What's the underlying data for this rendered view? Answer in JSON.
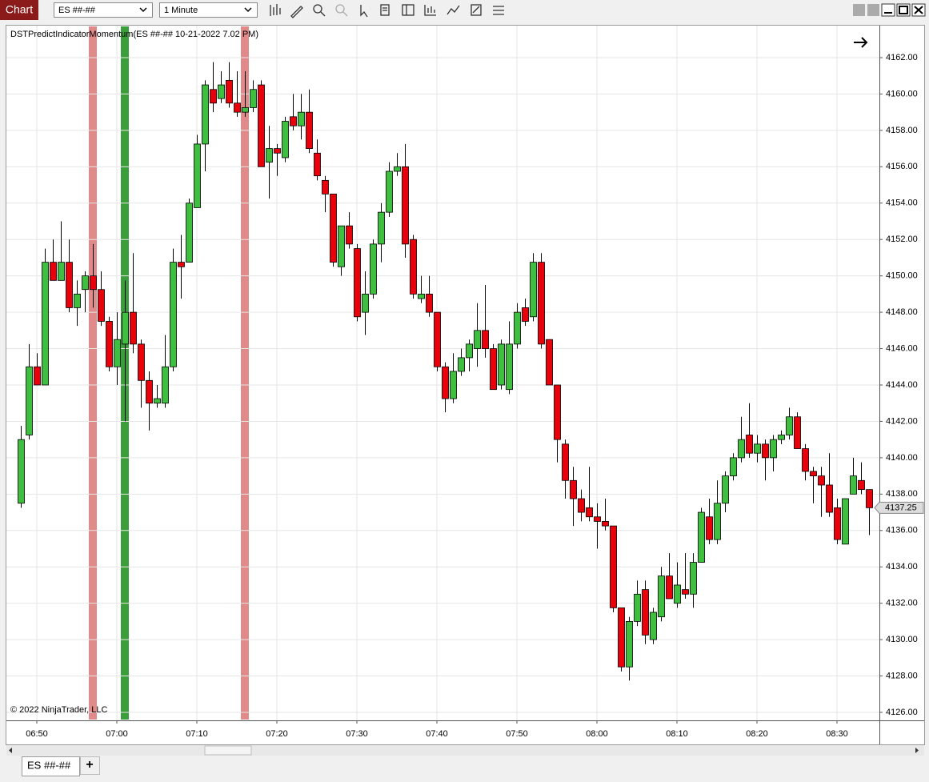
{
  "toolbar": {
    "title": "Chart",
    "instrument": "ES ##-##",
    "interval": "1 Minute"
  },
  "tabs": [
    "ES ##-##"
  ],
  "add_tab": "+",
  "chart_data": {
    "type": "candlestick",
    "title": "DSTPredictIndicatorMomentum(ES ##-## 10-21-2022 7.02 PM)",
    "copyright": "© 2022 NinjaTrader, LLC",
    "x": [
      "06:48",
      "06:49",
      "06:50",
      "06:51",
      "06:52",
      "06:53",
      "06:54",
      "06:55",
      "06:56",
      "06:57",
      "06:58",
      "06:59",
      "07:00",
      "07:01",
      "07:02",
      "07:03",
      "07:04",
      "07:05",
      "07:06",
      "07:07",
      "07:08",
      "07:09",
      "07:10",
      "07:11",
      "07:12",
      "07:13",
      "07:14",
      "07:15",
      "07:16",
      "07:17",
      "07:18",
      "07:19",
      "07:20",
      "07:21",
      "07:22",
      "07:23",
      "07:24",
      "07:25",
      "07:26",
      "07:27",
      "07:28",
      "07:29",
      "07:30",
      "07:31",
      "07:32",
      "07:33",
      "07:34",
      "07:35",
      "07:36",
      "07:37",
      "07:38",
      "07:39",
      "07:40",
      "07:41",
      "07:42",
      "07:43",
      "07:44",
      "07:45",
      "07:46",
      "07:47",
      "07:48",
      "07:49",
      "07:50",
      "07:51",
      "07:52",
      "07:53",
      "07:54",
      "07:55",
      "07:56",
      "07:57",
      "07:58",
      "07:59",
      "08:00",
      "08:01",
      "08:02",
      "08:03",
      "08:04",
      "08:05",
      "08:06",
      "08:07",
      "08:08",
      "08:09",
      "08:10",
      "08:11",
      "08:12",
      "08:13",
      "08:14",
      "08:15",
      "08:16",
      "08:17",
      "08:18",
      "08:19",
      "08:20",
      "08:21",
      "08:22",
      "08:23",
      "08:24",
      "08:25",
      "08:26",
      "08:27",
      "08:28",
      "08:29",
      "08:30",
      "08:31",
      "08:32",
      "08:33",
      "08:34"
    ],
    "open": [
      4137.5,
      4141.25,
      4145,
      4144,
      4150.75,
      4149.75,
      4150.75,
      4148.25,
      4149.25,
      4150,
      4149.25,
      4147.5,
      4145,
      4146.25,
      4148,
      4146.25,
      4144.25,
      4143,
      4143,
      4145,
      4150.75,
      4150.75,
      4153.75,
      4157.25,
      4160.25,
      4159.75,
      4160.75,
      4159.5,
      4159,
      4159.25,
      4160.5,
      4156.25,
      4157,
      4156.5,
      4158.75,
      4158.25,
      4159,
      4156.75,
      4155.25,
      4154.5,
      4150.5,
      4152.75,
      4151.5,
      4148,
      4149,
      4151.75,
      4153.5,
      4155.75,
      4156,
      4152,
      4148.75,
      4149,
      4148,
      4145,
      4143.25,
      4144.75,
      4145.5,
      4146,
      4147,
      4146,
      4144,
      4143.75,
      4146.25,
      4148.25,
      4147.75,
      4150.75,
      4146.5,
      4144,
      4140.75,
      4138.75,
      4137.75,
      4137.25,
      4136.75,
      4136.5,
      4136.25,
      4131.75,
      4128.5,
      4131,
      4132.75,
      4130,
      4131.25,
      4133.5,
      4132,
      4132.75,
      4132.5,
      4134.25,
      4136.75,
      4135.5,
      4137.5,
      4139,
      4140,
      4141.25,
      4140.25,
      4140.75,
      4140,
      4141,
      4141.25,
      4142.25,
      4140.5,
      4139.25,
      4139,
      4138.5,
      4137.25,
      4135.25,
      4138,
      4138.75,
      4138.25
    ],
    "high": [
      4141.75,
      4146.25,
      4145.75,
      4151.5,
      4152,
      4153,
      4152,
      4149.75,
      4150.25,
      4151.75,
      4150.25,
      4147.75,
      4148,
      4149.75,
      4151.25,
      4146.5,
      4144.75,
      4144,
      4146.75,
      4151.5,
      4152.25,
      4154.25,
      4157.75,
      4160.75,
      4161.75,
      4161.25,
      4161.75,
      4161.25,
      4161.25,
      4160.75,
      4160.75,
      4158.25,
      4157.25,
      4158.75,
      4160,
      4160,
      4160.25,
      4157.5,
      4155.5,
      4154.5,
      4152.75,
      4153.5,
      4151.75,
      4150.25,
      4152,
      4154,
      4156.25,
      4156.75,
      4157.25,
      4152.25,
      4150,
      4150,
      4148,
      4145.25,
      4145.75,
      4146,
      4146.5,
      4148.5,
      4149.5,
      4146.25,
      4146.5,
      4147.5,
      4148.5,
      4148.75,
      4151.25,
      4151.25,
      4146.5,
      4144,
      4141,
      4139.5,
      4138.25,
      4139.5,
      4137.5,
      4137.75,
      4136.25,
      4131.75,
      4131.25,
      4133.25,
      4133.25,
      4131.75,
      4134,
      4134.75,
      4134.25,
      4134.75,
      4134.75,
      4137.25,
      4137.75,
      4138.75,
      4139.25,
      4140.25,
      4142.25,
      4143,
      4141.25,
      4141,
      4141.25,
      4141.5,
      4142.75,
      4142.5,
      4140.75,
      4139.5,
      4139.5,
      4140.25,
      4137.75,
      4137.75,
      4140,
      4139.75,
      4138.25
    ],
    "low": [
      4137.25,
      4141,
      4144,
      4144,
      4149.75,
      4149.75,
      4148,
      4147.25,
      4148,
      4148.25,
      4147.25,
      4144.75,
      4144,
      4142,
      4145.75,
      4142.75,
      4141.5,
      4142.75,
      4142.75,
      4144.75,
      4148.75,
      4150.75,
      4153.75,
      4155.75,
      4159,
      4159.5,
      4159.25,
      4158.75,
      4158.75,
      4159,
      4156,
      4154.25,
      4155.5,
      4156.25,
      4158,
      4157.5,
      4156.75,
      4155.25,
      4153.5,
      4150.5,
      4150,
      4151.5,
      4147.5,
      4146.75,
      4148.75,
      4150.75,
      4153.25,
      4155.5,
      4151,
      4148.75,
      4148.5,
      4147.75,
      4144.75,
      4142.5,
      4143,
      4144.5,
      4144.75,
      4145,
      4145.5,
      4143.75,
      4143.75,
      4143.5,
      4146,
      4147.25,
      4147.5,
      4146,
      4144,
      4139.75,
      4137.75,
      4136.25,
      4136.5,
      4136.5,
      4135,
      4136,
      4131.5,
      4128.25,
      4127.75,
      4130.75,
      4129.75,
      4129.75,
      4131,
      4132.25,
      4131.75,
      4132.25,
      4131.75,
      4134.25,
      4135.25,
      4135.25,
      4137,
      4138.75,
      4139.75,
      4140,
      4139.75,
      4138.75,
      4139.25,
      4140.75,
      4141,
      4140.5,
      4138.75,
      4137.5,
      4136.75,
      4136.75,
      4135.25,
      4135.25,
      4138,
      4138,
      4135.75
    ],
    "close": [
      4141,
      4145,
      4144,
      4150.75,
      4149.75,
      4150.75,
      4148.25,
      4149,
      4150,
      4149.25,
      4147.5,
      4145,
      4146.5,
      4148,
      4146.25,
      4144.25,
      4143,
      4143.25,
      4145,
      4150.75,
      4150.5,
      4154,
      4157.25,
      4160.5,
      4159.5,
      4160.5,
      4159.5,
      4159,
      4159.25,
      4160.25,
      4156,
      4157,
      4156.75,
      4158.5,
      4158.25,
      4159,
      4157,
      4155.5,
      4154.5,
      4150.75,
      4152.75,
      4151.75,
      4147.75,
      4149,
      4151.75,
      4153.5,
      4155.75,
      4156,
      4151.75,
      4149,
      4149,
      4148,
      4145,
      4143.25,
      4144.75,
      4145.5,
      4146.25,
      4147,
      4146,
      4143.75,
      4146.25,
      4146.25,
      4148,
      4147.5,
      4150.75,
      4146.25,
      4144,
      4141,
      4138.75,
      4137.75,
      4137,
      4136.75,
      4136.5,
      4136.25,
      4131.75,
      4128.5,
      4131,
      4132.5,
      4130.25,
      4131.5,
      4133.5,
      4132.25,
      4133,
      4132.5,
      4134.25,
      4137,
      4135.5,
      4137.5,
      4139,
      4140,
      4141,
      4140.25,
      4140.75,
      4140,
      4141,
      4141.25,
      4142.25,
      4140.5,
      4139.25,
      4139,
      4138.5,
      4137,
      4135.5,
      4137.75,
      4139,
      4138.25,
      4137.25
    ],
    "up_color": "#3fbf3f",
    "down_color": "#e8000b",
    "highlights": [
      {
        "x": "06:57",
        "color": "#e08a8a"
      },
      {
        "x": "07:01",
        "color": "#3a9e3a"
      },
      {
        "x": "07:16",
        "color": "#e08a8a"
      }
    ],
    "last_price": 4137.25,
    "ylim": [
      4125.56,
      4163.76
    ],
    "yticks": [
      {
        "value": 4126,
        "label": "4126.00"
      },
      {
        "value": 4128,
        "label": "4128.00"
      },
      {
        "value": 4130,
        "label": "4130.00"
      },
      {
        "value": 4132,
        "label": "4132.00"
      },
      {
        "value": 4134,
        "label": "4134.00"
      },
      {
        "value": 4136,
        "label": "4136.00"
      },
      {
        "value": 4138,
        "label": "4138.00"
      },
      {
        "value": 4140,
        "label": "4140.00"
      },
      {
        "value": 4142,
        "label": "4142.00"
      },
      {
        "value": 4144,
        "label": "4144.00"
      },
      {
        "value": 4146,
        "label": "4146.00"
      },
      {
        "value": 4148,
        "label": "4148.00"
      },
      {
        "value": 4150,
        "label": "4150.00"
      },
      {
        "value": 4152,
        "label": "4152.00"
      },
      {
        "value": 4154,
        "label": "4154.00"
      },
      {
        "value": 4156,
        "label": "4156.00"
      },
      {
        "value": 4158,
        "label": "4158.00"
      },
      {
        "value": 4160,
        "label": "4160.00"
      },
      {
        "value": 4162,
        "label": "4162.00"
      }
    ],
    "xticks": [
      "06:50",
      "07:00",
      "07:10",
      "07:20",
      "07:30",
      "07:40",
      "07:50",
      "08:00",
      "08:10",
      "08:20",
      "08:30"
    ],
    "grid": true
  }
}
